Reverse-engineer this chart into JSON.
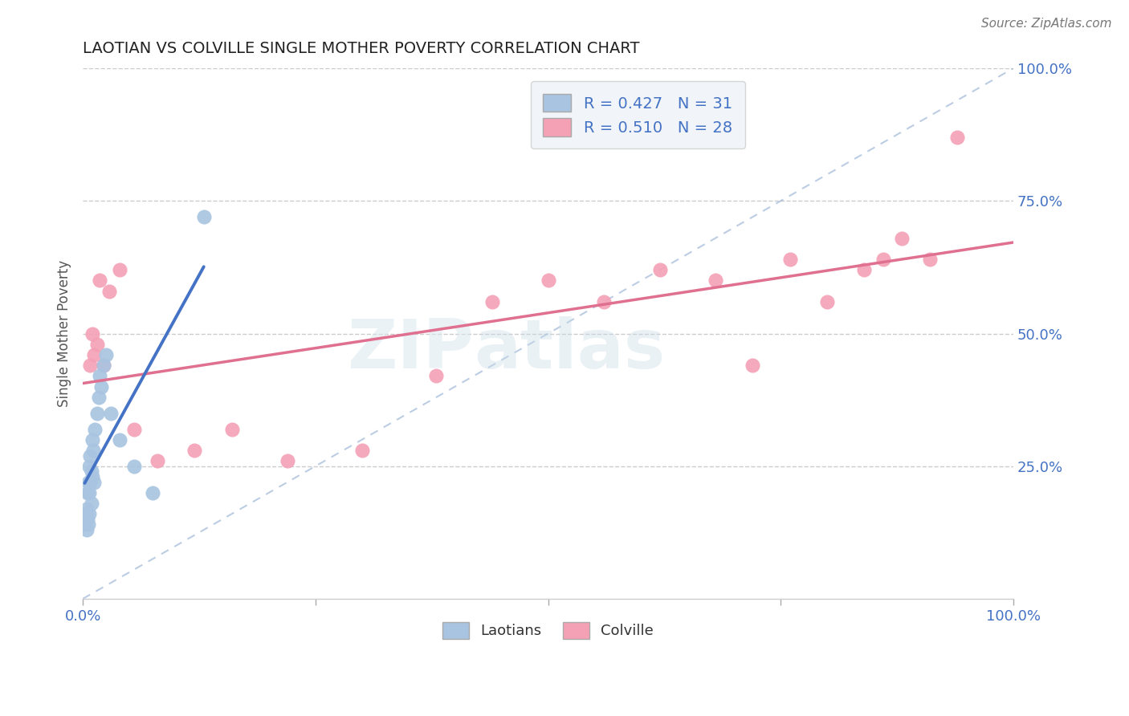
{
  "title": "LAOTIAN VS COLVILLE SINGLE MOTHER POVERTY CORRELATION CHART",
  "source": "Source: ZipAtlas.com",
  "ylabel": "Single Mother Poverty",
  "xlim": [
    0,
    1.0
  ],
  "ylim": [
    0,
    1.0
  ],
  "ytick_labels_right": [
    "25.0%",
    "50.0%",
    "75.0%",
    "100.0%"
  ],
  "ytick_vals_right": [
    0.25,
    0.5,
    0.75,
    1.0
  ],
  "laotian_R": 0.427,
  "laotian_N": 31,
  "colville_R": 0.51,
  "colville_N": 28,
  "laotian_color": "#a8c4e0",
  "colville_color": "#f4a0b5",
  "laotian_line_color": "#4472c4",
  "colville_line_color": "#e07090",
  "identity_line_color": "#a0b8d8",
  "legend_bg": "#eef3f8",
  "laotian_x": [
    0.002,
    0.003,
    0.004,
    0.004,
    0.005,
    0.005,
    0.006,
    0.006,
    0.007,
    0.007,
    0.007,
    0.008,
    0.008,
    0.009,
    0.009,
    0.01,
    0.01,
    0.011,
    0.012,
    0.013,
    0.015,
    0.017,
    0.018,
    0.02,
    0.022,
    0.025,
    0.03,
    0.04,
    0.055,
    0.075,
    0.13
  ],
  "laotian_y": [
    0.14,
    0.16,
    0.13,
    0.17,
    0.15,
    0.2,
    0.14,
    0.22,
    0.16,
    0.2,
    0.25,
    0.22,
    0.27,
    0.18,
    0.24,
    0.3,
    0.23,
    0.28,
    0.22,
    0.32,
    0.35,
    0.38,
    0.42,
    0.4,
    0.44,
    0.46,
    0.35,
    0.3,
    0.25,
    0.2,
    0.72
  ],
  "colville_x": [
    0.008,
    0.01,
    0.012,
    0.015,
    0.018,
    0.022,
    0.028,
    0.04,
    0.055,
    0.08,
    0.12,
    0.16,
    0.22,
    0.3,
    0.38,
    0.44,
    0.5,
    0.56,
    0.62,
    0.68,
    0.72,
    0.76,
    0.8,
    0.84,
    0.86,
    0.88,
    0.91,
    0.94
  ],
  "colville_y": [
    0.44,
    0.5,
    0.46,
    0.48,
    0.6,
    0.44,
    0.58,
    0.62,
    0.32,
    0.26,
    0.28,
    0.32,
    0.26,
    0.28,
    0.42,
    0.56,
    0.6,
    0.56,
    0.62,
    0.6,
    0.44,
    0.64,
    0.56,
    0.62,
    0.64,
    0.68,
    0.64,
    0.87
  ],
  "background_color": "#ffffff",
  "grid_color": "#cccccc"
}
